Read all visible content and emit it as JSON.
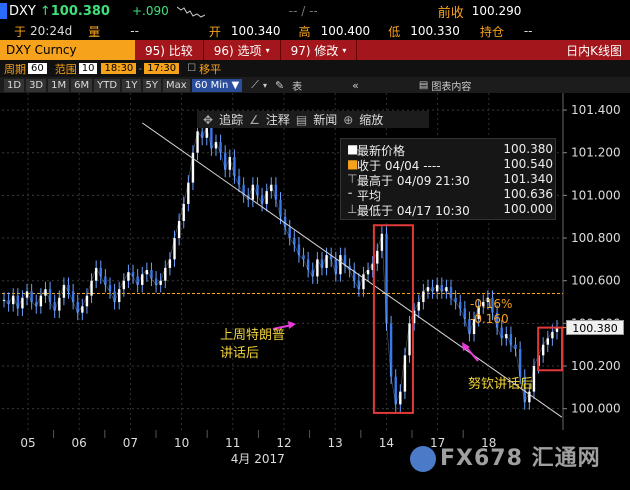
{
  "header": {
    "symbol": "DXY",
    "arrow": "↑",
    "last": "100.380",
    "change": "+.090",
    "dashes": "-- / --",
    "prev_close_label": "前收",
    "prev_close": "100.290",
    "time_label": "于",
    "time": "20:24d",
    "volume_label": "量",
    "volume": "--",
    "open_label": "开",
    "open": "100.340",
    "high_label": "高",
    "high": "100.400",
    "low_label": "低",
    "low": "100.330",
    "oi_label": "持仓",
    "oi": "--"
  },
  "menubar": {
    "ticker": "DXY Curncy",
    "compare": "95) 比较",
    "options": "96) 选项",
    "modify": "97) 修改",
    "title": "日内K线图"
  },
  "period_bar": {
    "period_label": "周期",
    "period_value": "60",
    "range_label": "范围",
    "range_value": "10",
    "time_from": "18:30",
    "time_to": "17:30",
    "move_label": "移平"
  },
  "toolbar": {
    "buttons": [
      "1D",
      "3D",
      "1M",
      "6M",
      "YTD",
      "1Y",
      "5Y",
      "Max"
    ],
    "interval": "60 Min",
    "table_label": "表",
    "chart_content_label": "图表内容"
  },
  "popup": {
    "track": "追踪",
    "annotate": "注释",
    "news": "新闻",
    "zoom": "缩放"
  },
  "legend": {
    "items": [
      {
        "label": "最新价格",
        "value": "100.380",
        "color": "#ffffff"
      },
      {
        "label": "收于 04/04 ----",
        "value": "100.540",
        "color": "#f7a21b"
      },
      {
        "label": "最高于 04/09 21:30",
        "value": "101.340",
        "color": "#bbbbbb"
      },
      {
        "label": "平均",
        "value": "100.636",
        "color": "#bbbbbb"
      },
      {
        "label": "最低于 04/17 10:30",
        "value": "100.000",
        "color": "#bbbbbb"
      }
    ]
  },
  "price_tag": "100.380",
  "annotations": {
    "left": [
      "上周特朗普",
      "讲话后"
    ],
    "right": "努钦讲话后",
    "pct": "-0.16%",
    "chg": "-0.160"
  },
  "watermark": "FX678 汇通网",
  "chart_data": {
    "type": "line",
    "y_ticks": [
      "101.400",
      "101.200",
      "101.000",
      "100.800",
      "100.600",
      "100.400",
      "100.200",
      "100.000"
    ],
    "ylim": [
      99.9,
      101.48
    ],
    "x_ticks": [
      "05",
      "06",
      "07",
      "10",
      "11",
      "12",
      "13",
      "14",
      "17",
      "18"
    ],
    "x_month_label": "4月 2017",
    "prev_close_level": 100.54,
    "series": [
      {
        "values": [
          100.51,
          100.49,
          100.53,
          100.47,
          100.52,
          100.55,
          100.5,
          100.48,
          100.53,
          100.56,
          100.5,
          100.46,
          100.52,
          100.58,
          100.55,
          100.5,
          100.45,
          100.48,
          100.53,
          100.6,
          100.66,
          100.62,
          100.58,
          100.55,
          100.5,
          100.56,
          100.6,
          100.64,
          100.62,
          100.58,
          100.63,
          100.65,
          100.61,
          100.58,
          100.6,
          100.66,
          100.7,
          100.8,
          100.88,
          100.96,
          101.06,
          101.2,
          101.3,
          101.27,
          101.32,
          101.22,
          101.25,
          101.2,
          101.12,
          101.18,
          101.09,
          101.05,
          101.0,
          100.98,
          101.05,
          101.0,
          100.96,
          101.02,
          101.05,
          100.98,
          100.9,
          100.85,
          100.8,
          100.77,
          100.72,
          100.7,
          100.65,
          100.62,
          100.7,
          100.66,
          100.72,
          100.7,
          100.63,
          100.72,
          100.67,
          100.65,
          100.6,
          100.56,
          100.63,
          100.65,
          100.68,
          100.74,
          100.82,
          100.4,
          100.15,
          100.02,
          100.08,
          100.25,
          100.4,
          100.46,
          100.5,
          100.55,
          100.57,
          100.55,
          100.58,
          100.55,
          100.57,
          100.52,
          100.5,
          100.47,
          100.42,
          100.35,
          100.42,
          100.48,
          100.5,
          100.52,
          100.45,
          100.38,
          100.33,
          100.35,
          100.3,
          100.28,
          100.15,
          100.03,
          100.08,
          100.2,
          100.25,
          100.3,
          100.33,
          100.36,
          100.38
        ]
      }
    ],
    "trendline": {
      "from": [
        0.25,
        101.34
      ],
      "to": [
        0.998,
        99.96
      ]
    }
  }
}
